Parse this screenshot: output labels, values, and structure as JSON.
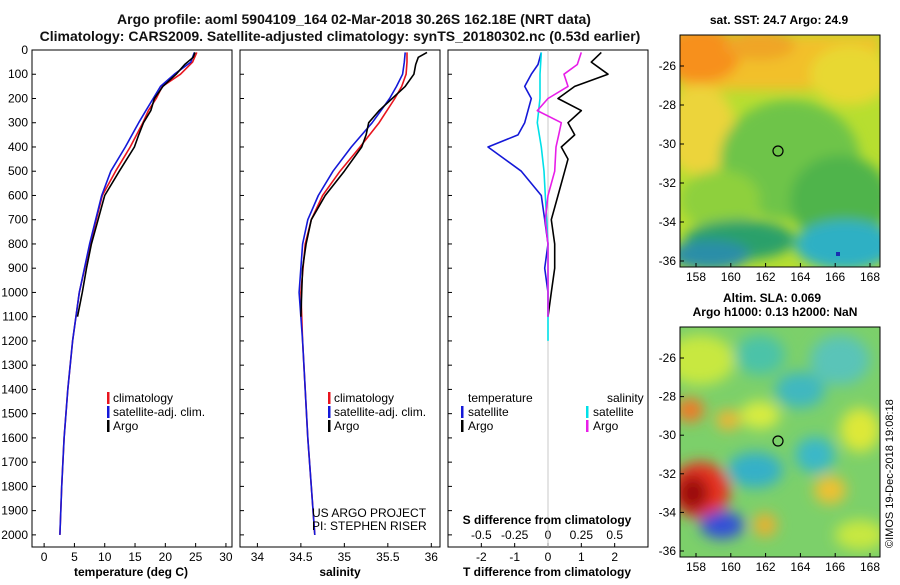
{
  "title": {
    "line1": "Argo profile: aoml 5904109_164 02-Mar-2018 30.26S 162.18E (NRT data)",
    "line2": "Climatology: CARS2009. Satellite-adjusted climatology: synTS_20180302.nc (0.53d earlier)"
  },
  "depth_ticks": [
    0,
    100,
    200,
    300,
    400,
    500,
    600,
    700,
    800,
    900,
    1000,
    1100,
    1200,
    1300,
    1400,
    1500,
    1600,
    1700,
    1800,
    1900,
    2000
  ],
  "colors": {
    "climatology": "#e8141e",
    "satellite": "#1418d8",
    "argo": "#000000",
    "sat_salinity": "#00e0e8",
    "argo_salinity": "#e81ee8"
  },
  "chart_data": [
    {
      "type": "line",
      "id": "temperature",
      "xlabel": "temperature (deg C)",
      "ylabel": "depth",
      "xlim": [
        -2,
        31
      ],
      "ylim": [
        2050,
        0
      ],
      "xticks": [
        0,
        5,
        10,
        15,
        20,
        25,
        30
      ],
      "xtick_labels": [
        "0",
        "5",
        "10",
        "15",
        "20",
        "25",
        "30"
      ],
      "legend": [
        "climatology",
        "satellite-adj. clim.",
        "Argo"
      ],
      "series": [
        {
          "name": "climatology",
          "color": "#e8141e",
          "depth": [
            10,
            50,
            100,
            150,
            200,
            250,
            300,
            400,
            500,
            600,
            800,
            1000,
            1200,
            1400,
            1600,
            1800,
            2000
          ],
          "values": [
            25.2,
            24.5,
            22.5,
            19.5,
            18.5,
            17.2,
            16.3,
            14.2,
            11.8,
            9.6,
            7.6,
            5.8,
            4.7,
            3.9,
            3.3,
            2.9,
            2.6
          ]
        },
        {
          "name": "satellite-adj. clim.",
          "color": "#1418d8",
          "depth": [
            10,
            50,
            100,
            150,
            200,
            250,
            300,
            400,
            500,
            600,
            800,
            1000,
            1200,
            1400,
            1600,
            1800,
            2000
          ],
          "values": [
            24.8,
            24.2,
            21.5,
            19.2,
            18.0,
            16.8,
            15.6,
            13.4,
            11.0,
            9.5,
            7.5,
            5.8,
            4.7,
            3.9,
            3.3,
            2.9,
            2.6
          ]
        },
        {
          "name": "Argo",
          "color": "#000000",
          "depth": [
            10,
            30,
            60,
            100,
            150,
            200,
            250,
            300,
            350,
            400,
            500,
            600,
            700,
            800,
            900,
            1000,
            1100
          ],
          "values": [
            24.9,
            24.6,
            23.2,
            21.8,
            19.6,
            18.2,
            17.6,
            16.4,
            15.6,
            14.9,
            12.4,
            10.0,
            8.9,
            7.8,
            7.0,
            6.3,
            5.5
          ]
        }
      ]
    },
    {
      "type": "line",
      "id": "salinity",
      "xlabel": "salinity",
      "ylabel": "depth",
      "xlim": [
        33.8,
        36.1
      ],
      "ylim": [
        2050,
        0
      ],
      "xticks": [
        34,
        34.5,
        35,
        35.5,
        36
      ],
      "xtick_labels": [
        "34",
        "34.5",
        "35",
        "35.5",
        "36"
      ],
      "legend": [
        "climatology",
        "satellite-adj. clim.",
        "Argo"
      ],
      "annotation": [
        "US ARGO PROJECT",
        "PI: STEPHEN RISER"
      ],
      "series": [
        {
          "name": "climatology",
          "color": "#e8141e",
          "depth": [
            10,
            50,
            100,
            150,
            200,
            300,
            400,
            500,
            600,
            700,
            800,
            1000,
            1200,
            1400,
            1600,
            1800,
            2000
          ],
          "values": [
            35.72,
            35.72,
            35.71,
            35.66,
            35.58,
            35.4,
            35.18,
            34.95,
            34.75,
            34.62,
            34.55,
            34.5,
            34.52,
            34.55,
            34.58,
            34.62,
            34.66
          ]
        },
        {
          "name": "satellite-adj. clim.",
          "color": "#1418d8",
          "depth": [
            10,
            50,
            100,
            150,
            200,
            300,
            400,
            500,
            600,
            700,
            800,
            1000,
            1200,
            1400,
            1600,
            1800,
            2000
          ],
          "values": [
            35.7,
            35.69,
            35.67,
            35.6,
            35.52,
            35.32,
            35.08,
            34.87,
            34.7,
            34.58,
            34.52,
            34.48,
            34.52,
            34.55,
            34.58,
            34.62,
            34.66
          ]
        },
        {
          "name": "Argo",
          "color": "#000000",
          "depth": [
            10,
            30,
            60,
            100,
            150,
            200,
            250,
            300,
            350,
            400,
            500,
            600,
            700,
            800,
            900,
            1000,
            1100
          ],
          "values": [
            35.95,
            35.85,
            35.82,
            35.8,
            35.7,
            35.55,
            35.4,
            35.28,
            35.25,
            35.2,
            35.0,
            34.78,
            34.62,
            34.56,
            34.52,
            34.51,
            34.5
          ]
        }
      ]
    },
    {
      "type": "line",
      "id": "difference",
      "xlabel": "T difference from climatology",
      "xlabel2": "S difference from climatology",
      "ylabel": "depth",
      "xlim": [
        -3,
        3
      ],
      "ylim": [
        2050,
        0
      ],
      "xticks": [
        -2,
        -1,
        0,
        1,
        2
      ],
      "xtick_labels": [
        "-2",
        "-1",
        "0",
        "1",
        "2"
      ],
      "sticks": [
        -0.5,
        -0.25,
        0,
        0.25,
        0.5
      ],
      "stick_labels": [
        "-0.5",
        "-0.25",
        "0",
        "0.25",
        "0.5"
      ],
      "legend_temperature_title": "temperature",
      "legend_salinity_title": "salinity",
      "legend_temperature": [
        "satellite",
        "Argo"
      ],
      "legend_salinity": [
        "satellite",
        "Argo"
      ],
      "series": [
        {
          "name": "T satellite",
          "color": "#1418d8",
          "depth": [
            10,
            60,
            100,
            150,
            200,
            250,
            300,
            350,
            400,
            450,
            500,
            600,
            700,
            800,
            900,
            1000,
            1100
          ],
          "values": [
            -0.2,
            -0.3,
            -0.5,
            -0.7,
            -0.5,
            -0.6,
            -0.7,
            -0.9,
            -1.8,
            -1.3,
            -0.8,
            -0.2,
            -0.1,
            0.0,
            -0.1,
            0.0,
            0.0
          ]
        },
        {
          "name": "T Argo",
          "color": "#000000",
          "depth": [
            10,
            50,
            100,
            150,
            200,
            250,
            300,
            350,
            400,
            450,
            500,
            600,
            700,
            800,
            900,
            1000,
            1100
          ],
          "values": [
            1.6,
            1.3,
            1.8,
            0.8,
            0.3,
            1.0,
            0.6,
            0.8,
            0.4,
            0.6,
            0.5,
            0.3,
            0.1,
            0.2,
            0.2,
            0.1,
            0.0
          ]
        },
        {
          "name": "S satellite",
          "color": "#00e0e8",
          "depth": [
            10,
            100,
            200,
            300,
            400,
            500,
            600,
            800,
            1000,
            1200
          ],
          "values": [
            -0.05,
            -0.06,
            -0.06,
            -0.08,
            -0.05,
            -0.03,
            -0.02,
            0.0,
            0.0,
            0.0
          ]
        },
        {
          "name": "S Argo",
          "color": "#e81ee8",
          "depth": [
            10,
            60,
            100,
            150,
            200,
            250,
            300,
            350,
            400,
            500,
            600,
            700,
            800,
            1000,
            1100
          ],
          "values": [
            0.25,
            0.22,
            0.12,
            0.15,
            0.0,
            -0.08,
            0.1,
            0.08,
            0.06,
            0.05,
            0.0,
            -0.02,
            0.0,
            0.0,
            0.0
          ]
        }
      ]
    }
  ],
  "maps": [
    {
      "id": "sst",
      "header": "sat. SST: 24.7 Argo: 24.9",
      "x_labels": [
        "158",
        "160",
        "162",
        "164",
        "166",
        "168"
      ],
      "y_labels": [
        "-26",
        "-28",
        "-30",
        "-32",
        "-34",
        "-36"
      ]
    },
    {
      "id": "sla",
      "header1": "Altim. SLA: 0.069",
      "header2": "Argo h1000: 0.13 h2000: NaN",
      "x_labels": [
        "158",
        "160",
        "162",
        "164",
        "166",
        "168"
      ],
      "y_labels": [
        "-26",
        "-28",
        "-30",
        "-32",
        "-34",
        "-36"
      ]
    }
  ],
  "credit": "©IMOS 19-Dec-2018 19:08:18"
}
